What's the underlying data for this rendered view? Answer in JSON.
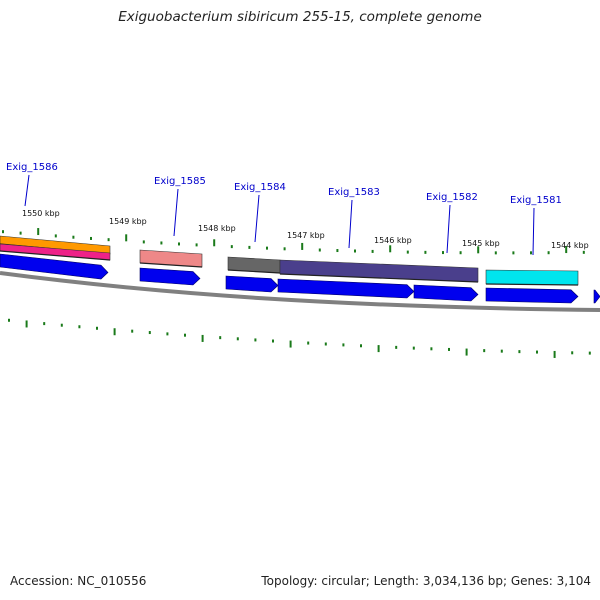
{
  "title": "Exiguobacterium sibiricum 255-15, complete genome",
  "footer": {
    "accession": "Accession: NC_010556",
    "summary": "Topology: circular; Length: 3,034,136 bp; Genes: 3,104"
  },
  "scale_labels": [
    "1550 kbp",
    "1549 kbp",
    "1548 kbp",
    "1547 kbp",
    "1546 kbp",
    "1545 kbp",
    "1544 kbp"
  ],
  "gene_labels": [
    "Exig_1586",
    "Exig_1585",
    "Exig_1584",
    "Exig_1583",
    "Exig_1582",
    "Exig_1581"
  ],
  "colors": {
    "label": "#0000cc",
    "tick": "#1a7a1a",
    "backbone": "#808080",
    "cds": "#0000ee",
    "gene_1586_top": "#ff9900",
    "gene_1586_bottom": "#ee2288",
    "gene_1585": "#ee8888",
    "gene_1584": "#666666",
    "gene_1583": "#4a3f8c",
    "gene_1581": "#00e5ee"
  }
}
